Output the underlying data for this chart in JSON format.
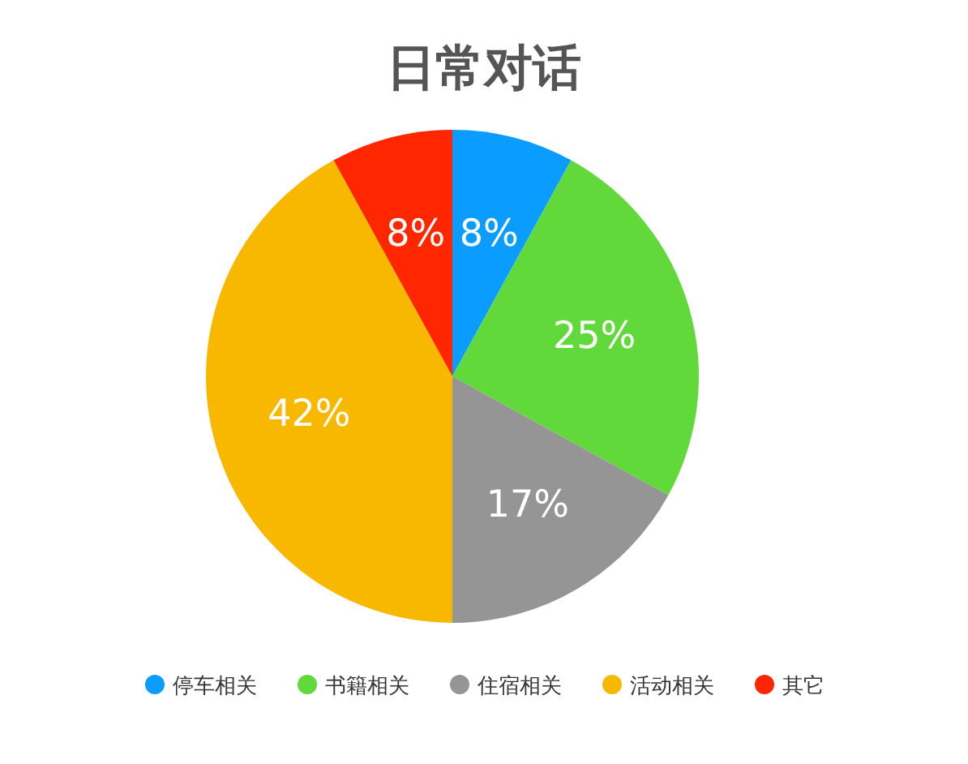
{
  "chart_data": {
    "type": "pie",
    "title": "日常对话",
    "categories": [
      "停车相关",
      "书籍相关",
      "住宿相关",
      "活动相关",
      "其它"
    ],
    "values": [
      8,
      25,
      17,
      42,
      8
    ],
    "colors": [
      "#0a9dff",
      "#62d93a",
      "#959595",
      "#f8b800",
      "#ff2600"
    ],
    "value_labels": [
      "8%",
      "25%",
      "17%",
      "42%",
      "8%"
    ],
    "legend": "bottom"
  }
}
